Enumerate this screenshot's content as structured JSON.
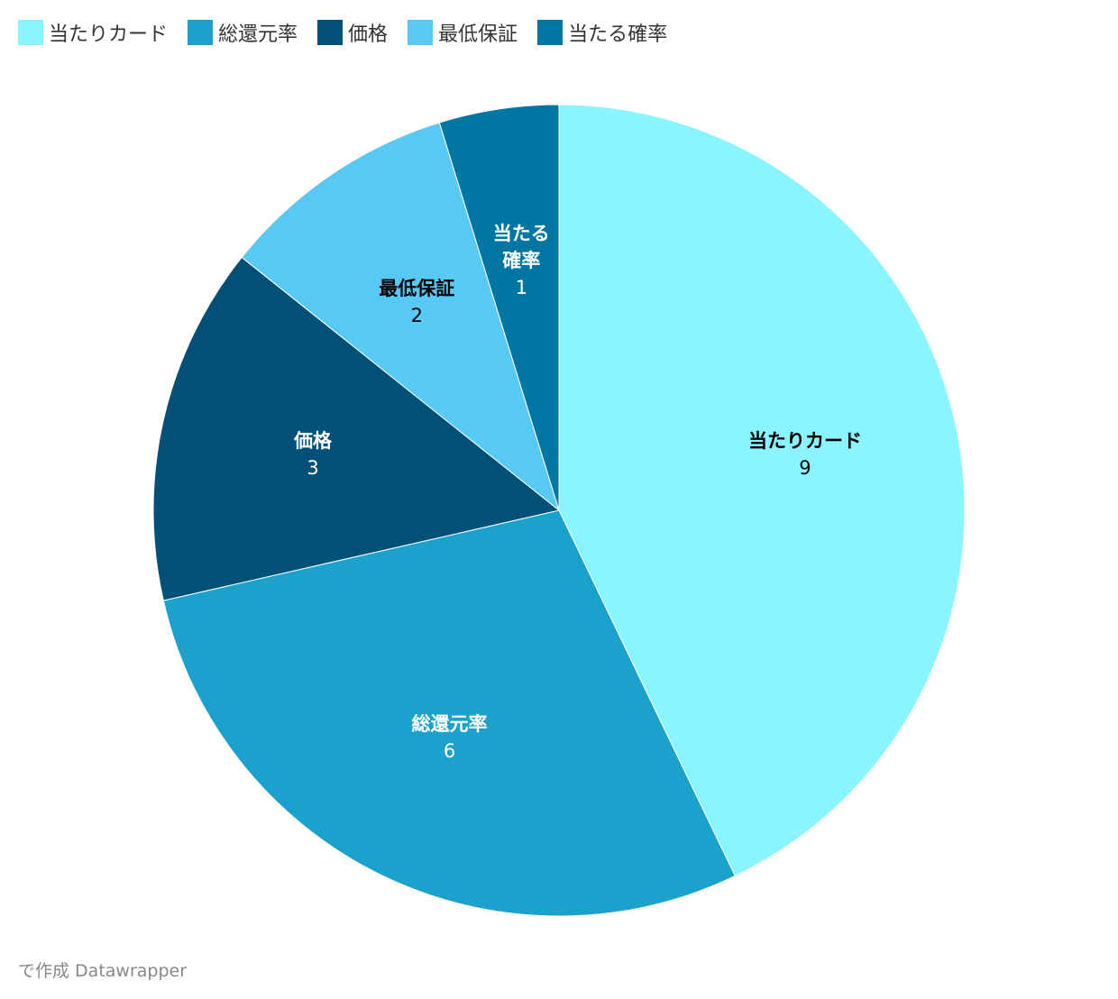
{
  "chart_data": {
    "type": "pie",
    "categories": [
      "当たりカード",
      "総還元率",
      "価格",
      "最低保証",
      "当たる確率"
    ],
    "values": [
      9,
      6,
      3,
      2,
      1
    ],
    "colors": [
      "#8af5fe",
      "#1aa1cc",
      "#005077",
      "#58c8f5",
      "#0077a3"
    ],
    "legend": "top-left",
    "credit": "で作成 Datawrapper"
  }
}
